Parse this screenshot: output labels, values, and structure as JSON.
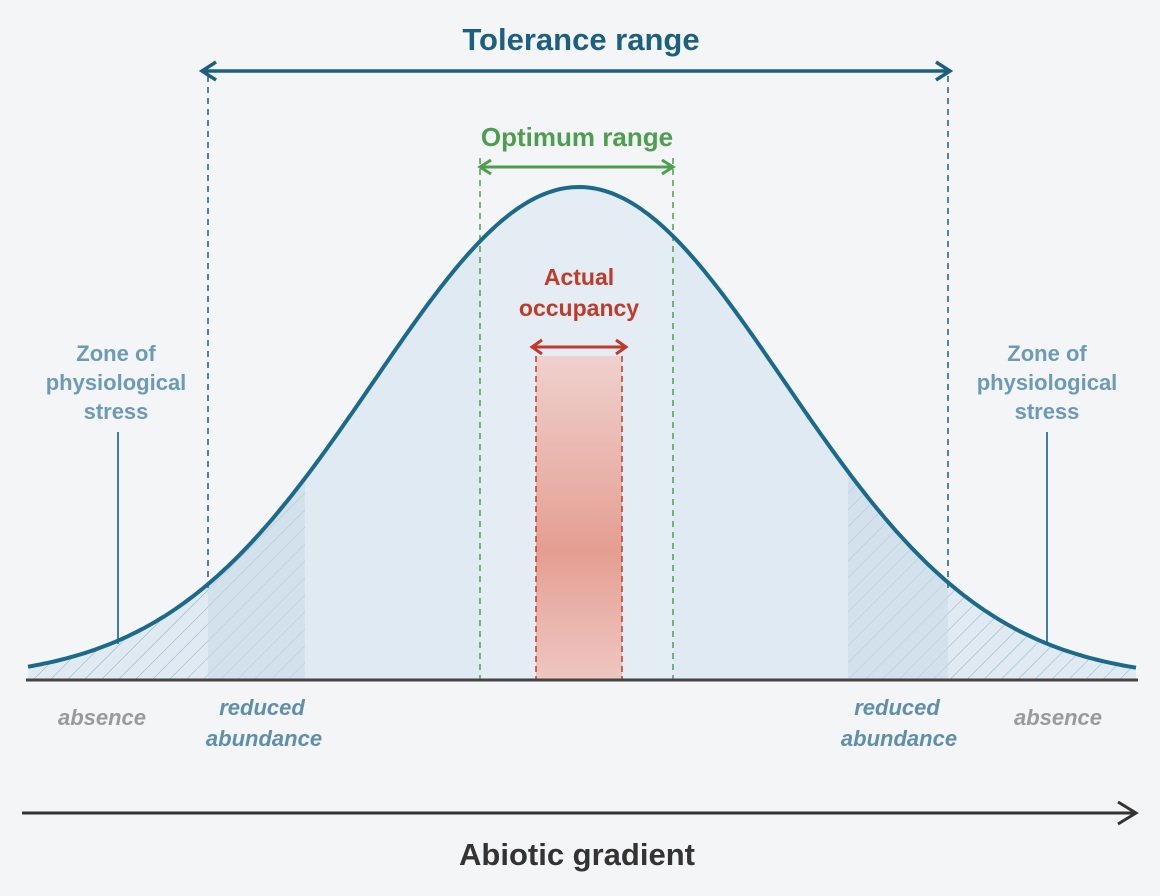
{
  "labels": {
    "tolerance_range": "Tolerance range",
    "optimum_range": "Optimum range",
    "actual_occupancy": [
      "Actual",
      "occupancy"
    ],
    "zone_left": [
      "Zone of",
      "physiological",
      "stress"
    ],
    "zone_right": [
      "Zone of",
      "physiological",
      "stress"
    ],
    "absence_left": "absence",
    "absence_right": "absence",
    "reduced_left": [
      "reduced",
      "abundance"
    ],
    "reduced_right": [
      "reduced",
      "abundance"
    ],
    "axis_label": "Abiotic gradient"
  },
  "colors": {
    "curve": "#1b6a8c",
    "tolerance": "#1d5f80",
    "optimum": "#4e9e50",
    "occupancy": "#c23a2a",
    "zone": "#6b9bb8",
    "reduced": "#5f8fab",
    "absence": "#9a9a9a",
    "axis": "#333333"
  }
}
